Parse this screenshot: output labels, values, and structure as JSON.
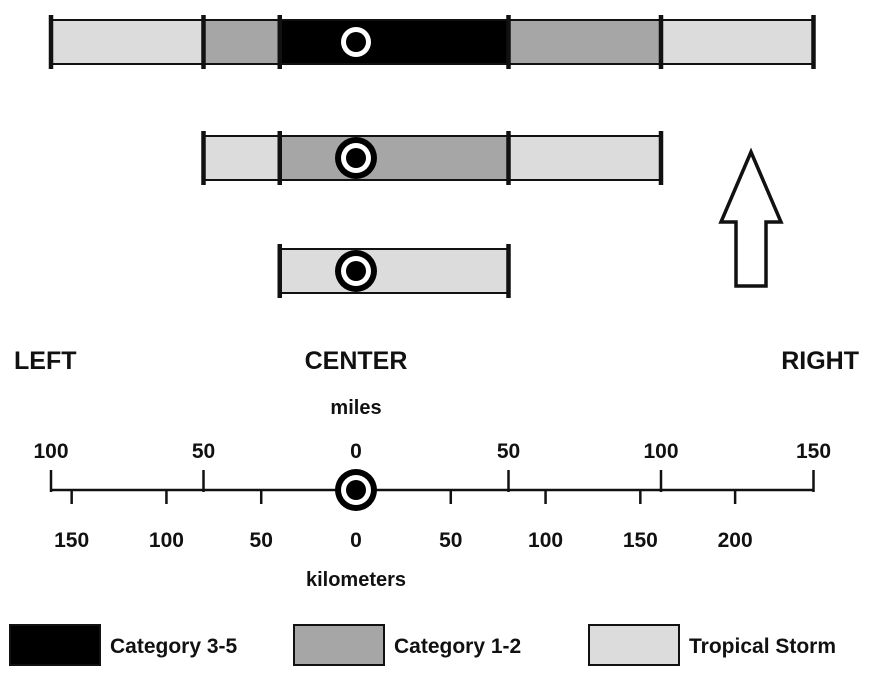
{
  "colors": {
    "category_3_5": "#000000",
    "category_1_2": "#a6a6a6",
    "tropical_storm": "#dcdcdc",
    "outline": "#111111",
    "background": "#ffffff"
  },
  "icons": {
    "storm_center": "storm-center-icon",
    "direction": "up-arrow-icon"
  },
  "bars": [
    {
      "segments": [
        {
          "class": "tropical_storm",
          "from_mi": -100,
          "to_mi": -50
        },
        {
          "class": "category_1_2",
          "from_mi": -50,
          "to_mi": -25
        },
        {
          "class": "category_3_5",
          "from_mi": -25,
          "to_mi": 50
        },
        {
          "class": "category_1_2",
          "from_mi": 50,
          "to_mi": 100
        },
        {
          "class": "tropical_storm",
          "from_mi": 100,
          "to_mi": 150
        }
      ]
    },
    {
      "segments": [
        {
          "class": "tropical_storm",
          "from_mi": -50,
          "to_mi": -25
        },
        {
          "class": "category_1_2",
          "from_mi": -25,
          "to_mi": 50
        },
        {
          "class": "tropical_storm",
          "from_mi": 50,
          "to_mi": 100
        }
      ]
    },
    {
      "segments": [
        {
          "class": "tropical_storm",
          "from_mi": -25,
          "to_mi": 50
        }
      ]
    }
  ],
  "directions": {
    "left": "LEFT",
    "center": "CENTER",
    "right": "RIGHT"
  },
  "scale": {
    "miles_label": "miles",
    "km_label": "kilometers",
    "mile_ticks": [
      "100",
      "50",
      "0",
      "50",
      "100",
      "150"
    ],
    "km_ticks": [
      "150",
      "100",
      "50",
      "0",
      "50",
      "100",
      "150",
      "200"
    ]
  },
  "legend": [
    {
      "key": "category_3_5",
      "label": "Category 3-5"
    },
    {
      "key": "category_1_2",
      "label": "Category 1-2"
    },
    {
      "key": "tropical_storm",
      "label": "Tropical Storm"
    }
  ]
}
